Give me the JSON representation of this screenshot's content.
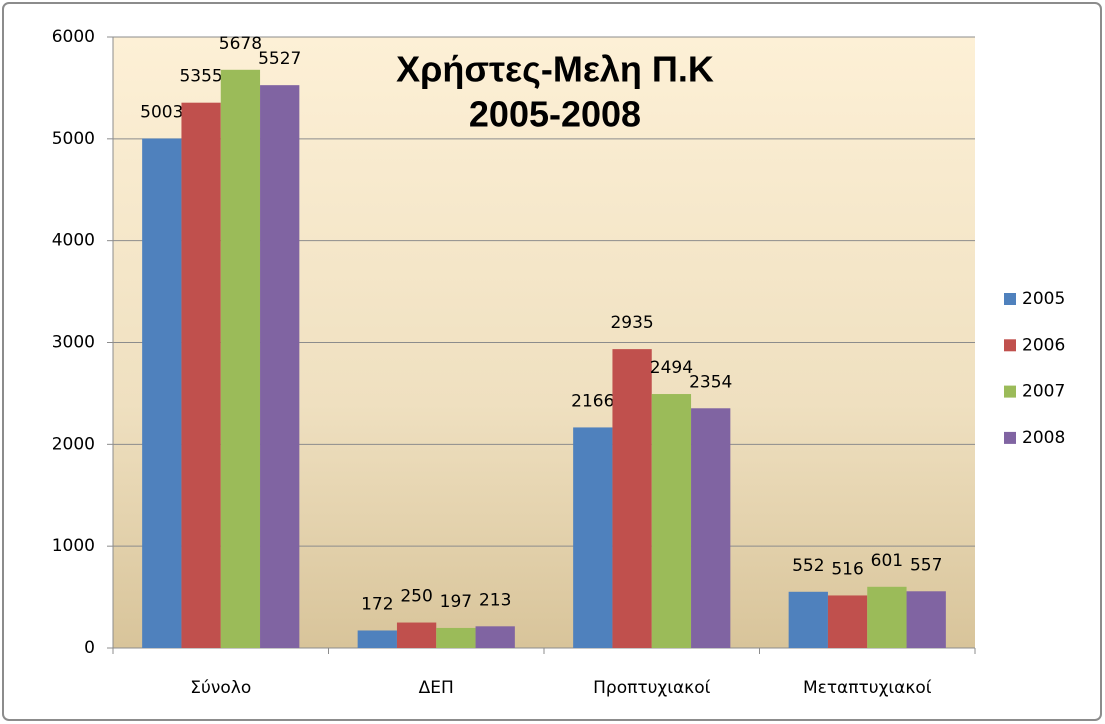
{
  "chart_data": {
    "type": "bar",
    "title": [
      "Χρήστες-Μελη Π.Κ",
      "2005-2008"
    ],
    "categories": [
      "Σύνολο",
      "ΔΕΠ",
      "Προπτυχιακοί",
      "Μεταπτυχιακοί"
    ],
    "series": [
      {
        "name": "2005",
        "color": "#4f81bd",
        "values": [
          5003,
          172,
          2166,
          552
        ]
      },
      {
        "name": "2006",
        "color": "#c0504d",
        "values": [
          5355,
          250,
          2935,
          516
        ]
      },
      {
        "name": "2007",
        "color": "#9bbb59",
        "values": [
          5678,
          197,
          2494,
          601
        ]
      },
      {
        "name": "2008",
        "color": "#8064a2",
        "values": [
          5527,
          213,
          2354,
          557
        ]
      }
    ],
    "ylim": [
      0,
      6000
    ],
    "yticks": [
      0,
      1000,
      2000,
      3000,
      4000,
      5000,
      6000
    ],
    "grid": true,
    "legend": "right"
  }
}
